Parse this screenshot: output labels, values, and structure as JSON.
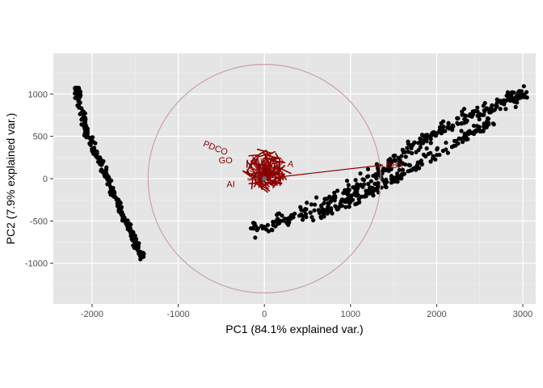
{
  "chart_data": {
    "type": "scatter",
    "title": "",
    "xlabel": "PC1 (84.1% explained var.)",
    "ylabel": "PC2 (7.9% explained var.)",
    "xlim": [
      -2450,
      3150
    ],
    "ylim": [
      -1480,
      1480
    ],
    "x_ticks": [
      -2000,
      -1000,
      0,
      1000,
      2000,
      3000
    ],
    "y_ticks": [
      -1000,
      -500,
      0,
      500,
      1000
    ],
    "x_tick_labels": [
      "-2000",
      "-1000",
      "0",
      "1000",
      "2000",
      "3000"
    ],
    "y_tick_labels": [
      "-1000",
      "-500",
      "0",
      "500",
      "1000"
    ],
    "grid": true,
    "legend": "none",
    "colors": {
      "panel": "#e5e5e5",
      "grid_major": "#ffffff",
      "points": "#000000",
      "variables": "#8b0000",
      "circle": "#c9a0a9"
    },
    "circle": {
      "center": [
        0,
        0
      ],
      "radius": 1350
    },
    "point_clusters": [
      {
        "name": "left-band",
        "path": [
          [
            -2170,
            1080
          ],
          [
            -2150,
            900
          ],
          [
            -2080,
            600
          ],
          [
            -1980,
            350
          ],
          [
            -1900,
            180
          ],
          [
            -1800,
            -50
          ],
          [
            -1650,
            -400
          ],
          [
            -1550,
            -600
          ],
          [
            -1420,
            -950
          ]
        ],
        "spread": 18,
        "count": 260
      },
      {
        "name": "right-band-upper",
        "path": [
          [
            -150,
            -610
          ],
          [
            300,
            -470
          ],
          [
            800,
            -260
          ],
          [
            1300,
            40
          ],
          [
            1800,
            420
          ],
          [
            2300,
            700
          ],
          [
            2700,
            880
          ],
          [
            3060,
            1030
          ]
        ],
        "spread": 45,
        "count": 340
      },
      {
        "name": "right-band-lower",
        "path": [
          [
            550,
            -470
          ],
          [
            1000,
            -270
          ],
          [
            1400,
            -60
          ],
          [
            1800,
            180
          ],
          [
            2200,
            430
          ],
          [
            2650,
            680
          ]
        ],
        "spread": 30,
        "count": 200
      }
    ],
    "variable_cluster": {
      "center": [
        0,
        100
      ],
      "radius": 280,
      "count": 70
    },
    "variables": [
      {
        "label": "PDCO",
        "x": -580,
        "y": 330,
        "angle": 22
      },
      {
        "label": "GO",
        "x": -450,
        "y": 180,
        "angle": 0
      },
      {
        "label": "A",
        "x": 200,
        "y": 180,
        "angle": -15
      },
      {
        "label": "A",
        "x": 300,
        "y": 140,
        "angle": 10
      },
      {
        "label": "AI",
        "x": -390,
        "y": -100,
        "angle": 0
      }
    ],
    "arrow": {
      "label": "BBX",
      "from": [
        0,
        0
      ],
      "to": [
        1370,
        160
      ]
    }
  }
}
